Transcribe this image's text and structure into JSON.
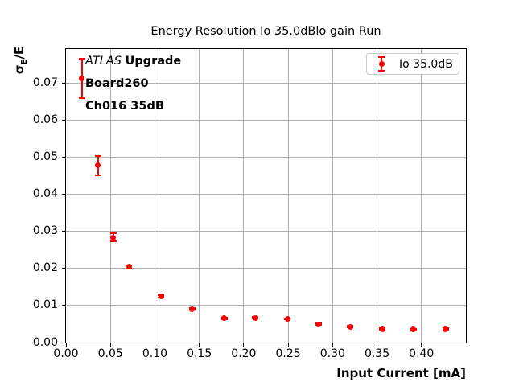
{
  "chart_data": {
    "type": "scatter",
    "title": "Energy Resolution Io 35.0dBlo gain Run",
    "xlabel": "Input Current [mA]",
    "ylabel": "sigma_E/E",
    "xlim": [
      0,
      0.45
    ],
    "ylim": [
      0,
      0.0792
    ],
    "xticks": [
      0.0,
      0.05,
      0.1,
      0.15,
      0.2,
      0.25,
      0.3,
      0.35,
      0.4
    ],
    "yticks": [
      0.0,
      0.01,
      0.02,
      0.03,
      0.04,
      0.05,
      0.06,
      0.07
    ],
    "grid": true,
    "grid_color": "#b0b0b0",
    "background": "#ffffff",
    "legend_position": "upper right",
    "series": [
      {
        "name": "Io 35.0dB",
        "color": "#ff0000",
        "marker": "circle",
        "x": [
          0.018,
          0.036,
          0.053,
          0.071,
          0.107,
          0.142,
          0.178,
          0.213,
          0.249,
          0.284,
          0.32,
          0.356,
          0.391,
          0.427
        ],
        "y": [
          0.0712,
          0.0478,
          0.0284,
          0.0204,
          0.0125,
          0.0091,
          0.0066,
          0.0067,
          0.0064,
          0.0049,
          0.0043,
          0.0036,
          0.0035,
          0.0036
        ],
        "yerr": [
          0.0053,
          0.0026,
          0.0011,
          0.0005,
          0.0003,
          0.0003,
          0.0002,
          0.0002,
          0.0002,
          0.0002,
          0.0002,
          0.0002,
          0.0002,
          0.0002
        ]
      }
    ]
  },
  "labels": {
    "ylabel_sigma": "σ",
    "ylabel_sub": "E",
    "ylabel_rest": "/E"
  },
  "annotation": {
    "atlas": "ATLAS",
    "upgrade": "Upgrade",
    "board": "Board260",
    "channel": "Ch016 35dB"
  },
  "legend": {
    "label": "Io 35.0dB"
  }
}
